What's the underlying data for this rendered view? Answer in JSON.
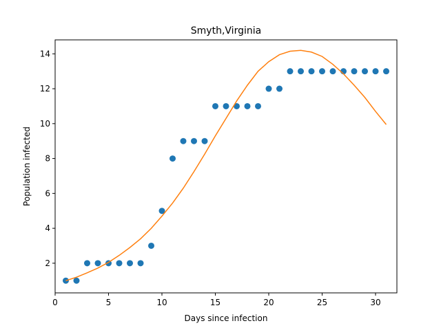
{
  "chart_data": {
    "type": "scatter",
    "title": "Smyth,Virginia",
    "xlabel": "Days since infection",
    "ylabel": "Population infected",
    "xlim": [
      0,
      32
    ],
    "ylim": [
      0.3,
      14.8
    ],
    "xticks": [
      0,
      5,
      10,
      15,
      20,
      25,
      30
    ],
    "yticks": [
      2,
      4,
      6,
      8,
      10,
      12,
      14
    ],
    "grid": false,
    "series": [
      {
        "kind": "scatter",
        "color": "#1f77b4",
        "x": [
          1,
          2,
          3,
          4,
          5,
          6,
          7,
          8,
          9,
          10,
          11,
          12,
          13,
          14,
          15,
          16,
          17,
          18,
          19,
          20,
          21,
          22,
          23,
          24,
          25,
          26,
          27,
          28,
          29,
          30,
          31
        ],
        "y": [
          1,
          1,
          2,
          2,
          2,
          2,
          2,
          2,
          3,
          5,
          8,
          9,
          9,
          9,
          11,
          11,
          11,
          11,
          11,
          12,
          12,
          13,
          13,
          13,
          13,
          13,
          13,
          13,
          13,
          13,
          13
        ]
      },
      {
        "kind": "line",
        "color": "#ff7f0e",
        "x": [
          1,
          2,
          3,
          4,
          5,
          6,
          7,
          8,
          9,
          10,
          11,
          12,
          13,
          14,
          15,
          16,
          17,
          18,
          19,
          20,
          21,
          22,
          23,
          24,
          25,
          26,
          27,
          28,
          29,
          30,
          31
        ],
        "y": [
          1.0,
          1.2,
          1.45,
          1.72,
          2.05,
          2.45,
          2.9,
          3.4,
          4.0,
          4.7,
          5.45,
          6.3,
          7.25,
          8.25,
          9.3,
          10.3,
          11.3,
          12.2,
          13.0,
          13.55,
          13.95,
          14.15,
          14.2,
          14.1,
          13.85,
          13.4,
          12.85,
          12.2,
          11.5,
          10.7,
          9.95
        ]
      }
    ]
  }
}
